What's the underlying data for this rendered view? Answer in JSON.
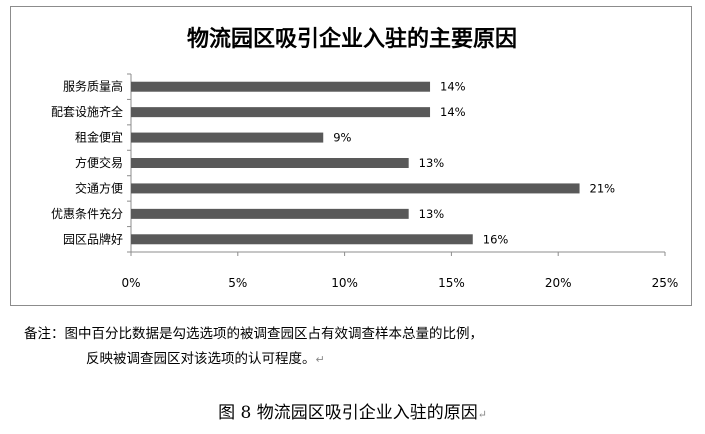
{
  "chart_data": {
    "type": "bar",
    "orientation": "horizontal",
    "title": "物流园区吸引企业入驻的主要原因",
    "categories": [
      "服务质量高",
      "配套设施齐全",
      "租金便宜",
      "方便交易",
      "交通方便",
      "优惠条件充分",
      "园区品牌好"
    ],
    "values": [
      14,
      14,
      9,
      13,
      21,
      13,
      16
    ],
    "data_labels": [
      "14%",
      "14%",
      "9%",
      "13%",
      "21%",
      "13%",
      "16%"
    ],
    "xlim": [
      0,
      25
    ],
    "x_ticks": [
      0,
      5,
      10,
      15,
      20,
      25
    ],
    "x_tick_labels": [
      "0%",
      "5%",
      "10%",
      "15%",
      "20%",
      "25%"
    ],
    "bar_color": "#595959",
    "grid": false,
    "legend": "none"
  },
  "note": {
    "line1": "备注：图中百分比数据是勾选选项的被调查园区占有效调查样本总量的比例，",
    "line2": "反映被调查园区对该选项的认可程度。",
    "mark": "↵"
  },
  "caption": {
    "text": "图 8  物流园区吸引企业入驻的原因",
    "mark": "↵"
  }
}
